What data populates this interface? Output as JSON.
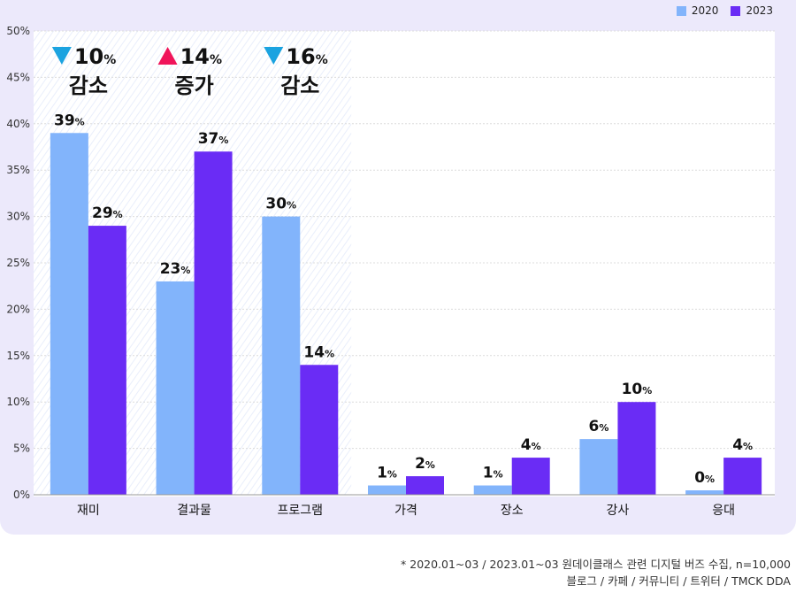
{
  "chart_data": {
    "type": "bar",
    "categories": [
      "재미",
      "결과물",
      "프로그램",
      "가격",
      "장소",
      "강사",
      "응대"
    ],
    "series": [
      {
        "name": "2020",
        "values": [
          39,
          23,
          30,
          1,
          1,
          6,
          0
        ],
        "labels": [
          "39%",
          "23%",
          "30%",
          "1%",
          "1%",
          "6%",
          "0%"
        ],
        "color": "#82b4fb"
      },
      {
        "name": "2023",
        "values": [
          29,
          37,
          14,
          2,
          4,
          10,
          4
        ],
        "labels": [
          "29%",
          "37%",
          "14%",
          "2%",
          "4%",
          "10%",
          "4%"
        ],
        "color": "#6a2cf5"
      }
    ],
    "yticks": [
      "0%",
      "5%",
      "10%",
      "15%",
      "20%",
      "25%",
      "30%",
      "35%",
      "40%",
      "45%",
      "50%"
    ],
    "ylim": [
      0,
      50
    ],
    "legend_position": "top-right",
    "grid": true,
    "annotations": [
      {
        "category": "재미",
        "arrow": "down",
        "value": "10%",
        "text": "감소",
        "color": "#1ba3e0"
      },
      {
        "category": "결과물",
        "arrow": "up",
        "value": "14%",
        "text": "증가",
        "color": "#f0145a"
      },
      {
        "category": "프로그램",
        "arrow": "down",
        "value": "16%",
        "text": "감소",
        "color": "#1ba3e0"
      }
    ]
  },
  "footnote": {
    "line1": "* 2020.01~03 / 2023.01~03 원데이클래스 관련 디지털 버즈 수집, n=10,000",
    "line2": "블로그 / 카페 / 커뮤니티 / 트위터 / TMCK DDA"
  }
}
